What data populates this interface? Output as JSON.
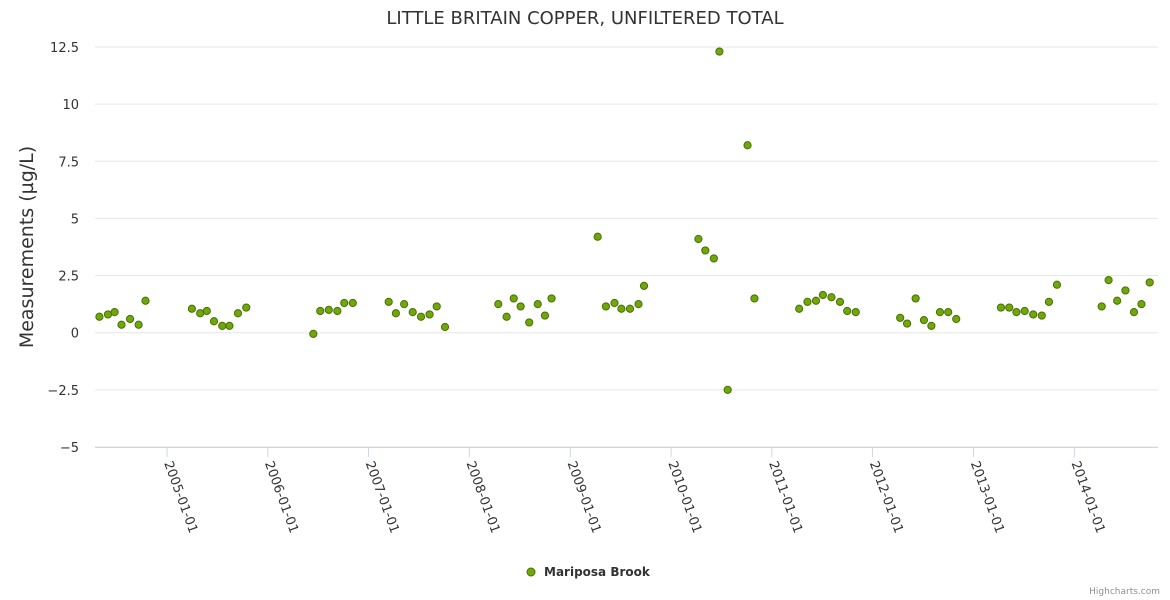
{
  "chart_data": {
    "type": "scatter",
    "title": "LITTLE BRITAIN COPPER, UNFILTERED TOTAL",
    "ylabel": "Measurements (µg/L)",
    "xlabel": "",
    "ylim": [
      -5,
      12.5
    ],
    "xlim": [
      "2004-04-15",
      "2014-10-31"
    ],
    "yticks": [
      -5,
      -2.5,
      0,
      2.5,
      5,
      7.5,
      10,
      12.5
    ],
    "ytick_labels": [
      "−5",
      "−2.5",
      "0",
      "2.5",
      "5",
      "7.5",
      "10",
      "12.5"
    ],
    "xticks": [
      "2005-01-01",
      "2006-01-01",
      "2007-01-01",
      "2008-01-01",
      "2009-01-01",
      "2010-01-01",
      "2011-01-01",
      "2012-01-01",
      "2013-01-01",
      "2014-01-01"
    ],
    "grid": "horizontal",
    "legend_position": "bottom-center",
    "series": [
      {
        "name": "Mariposa Brook",
        "color": "#6fa80c",
        "points": [
          {
            "x": "2004-05-01",
            "y": 0.7
          },
          {
            "x": "2004-06-01",
            "y": 0.8
          },
          {
            "x": "2004-06-25",
            "y": 0.9
          },
          {
            "x": "2004-07-20",
            "y": 0.35
          },
          {
            "x": "2004-08-20",
            "y": 0.6
          },
          {
            "x": "2004-09-20",
            "y": 0.35
          },
          {
            "x": "2004-10-15",
            "y": 1.4
          },
          {
            "x": "2005-04-01",
            "y": 1.05
          },
          {
            "x": "2005-05-01",
            "y": 0.85
          },
          {
            "x": "2005-05-25",
            "y": 0.95
          },
          {
            "x": "2005-06-20",
            "y": 0.5
          },
          {
            "x": "2005-07-20",
            "y": 0.3
          },
          {
            "x": "2005-08-15",
            "y": 0.3
          },
          {
            "x": "2005-09-15",
            "y": 0.85
          },
          {
            "x": "2005-10-15",
            "y": 1.1
          },
          {
            "x": "2006-06-15",
            "y": -0.05
          },
          {
            "x": "2006-07-10",
            "y": 0.95
          },
          {
            "x": "2006-08-10",
            "y": 1.0
          },
          {
            "x": "2006-09-10",
            "y": 0.95
          },
          {
            "x": "2006-10-05",
            "y": 1.3
          },
          {
            "x": "2006-11-05",
            "y": 1.3
          },
          {
            "x": "2007-03-15",
            "y": 1.35
          },
          {
            "x": "2007-04-10",
            "y": 0.85
          },
          {
            "x": "2007-05-10",
            "y": 1.25
          },
          {
            "x": "2007-06-10",
            "y": 0.9
          },
          {
            "x": "2007-07-10",
            "y": 0.7
          },
          {
            "x": "2007-08-10",
            "y": 0.8
          },
          {
            "x": "2007-09-05",
            "y": 1.15
          },
          {
            "x": "2007-10-05",
            "y": 0.25
          },
          {
            "x": "2008-04-15",
            "y": 1.25
          },
          {
            "x": "2008-05-15",
            "y": 0.7
          },
          {
            "x": "2008-06-10",
            "y": 1.5
          },
          {
            "x": "2008-07-05",
            "y": 1.15
          },
          {
            "x": "2008-08-05",
            "y": 0.45
          },
          {
            "x": "2008-09-05",
            "y": 1.25
          },
          {
            "x": "2008-10-01",
            "y": 0.75
          },
          {
            "x": "2008-10-25",
            "y": 1.5
          },
          {
            "x": "2009-04-10",
            "y": 4.2
          },
          {
            "x": "2009-05-10",
            "y": 1.15
          },
          {
            "x": "2009-06-10",
            "y": 1.3
          },
          {
            "x": "2009-07-05",
            "y": 1.05
          },
          {
            "x": "2009-08-05",
            "y": 1.05
          },
          {
            "x": "2009-09-05",
            "y": 1.25
          },
          {
            "x": "2009-09-25",
            "y": 2.05
          },
          {
            "x": "2010-04-10",
            "y": 4.1
          },
          {
            "x": "2010-05-05",
            "y": 3.6
          },
          {
            "x": "2010-06-05",
            "y": 3.25
          },
          {
            "x": "2010-06-25",
            "y": 12.3
          },
          {
            "x": "2010-07-25",
            "y": -2.5
          },
          {
            "x": "2010-10-05",
            "y": 8.2
          },
          {
            "x": "2010-10-30",
            "y": 1.5
          },
          {
            "x": "2011-04-10",
            "y": 1.05
          },
          {
            "x": "2011-05-10",
            "y": 1.35
          },
          {
            "x": "2011-06-10",
            "y": 1.4
          },
          {
            "x": "2011-07-05",
            "y": 1.65
          },
          {
            "x": "2011-08-05",
            "y": 1.55
          },
          {
            "x": "2011-09-05",
            "y": 1.35
          },
          {
            "x": "2011-10-01",
            "y": 0.95
          },
          {
            "x": "2011-11-01",
            "y": 0.9
          },
          {
            "x": "2012-04-10",
            "y": 0.65
          },
          {
            "x": "2012-05-05",
            "y": 0.4
          },
          {
            "x": "2012-06-05",
            "y": 1.5
          },
          {
            "x": "2012-07-05",
            "y": 0.55
          },
          {
            "x": "2012-08-01",
            "y": 0.3
          },
          {
            "x": "2012-09-01",
            "y": 0.9
          },
          {
            "x": "2012-10-01",
            "y": 0.9
          },
          {
            "x": "2012-10-30",
            "y": 0.6
          },
          {
            "x": "2013-04-10",
            "y": 1.1
          },
          {
            "x": "2013-05-10",
            "y": 1.1
          },
          {
            "x": "2013-06-05",
            "y": 0.9
          },
          {
            "x": "2013-07-05",
            "y": 0.95
          },
          {
            "x": "2013-08-05",
            "y": 0.8
          },
          {
            "x": "2013-09-05",
            "y": 0.75
          },
          {
            "x": "2013-10-01",
            "y": 1.35
          },
          {
            "x": "2013-10-30",
            "y": 2.1
          },
          {
            "x": "2014-04-10",
            "y": 1.15
          },
          {
            "x": "2014-05-05",
            "y": 2.3
          },
          {
            "x": "2014-06-05",
            "y": 1.4
          },
          {
            "x": "2014-07-05",
            "y": 1.85
          },
          {
            "x": "2014-08-05",
            "y": 0.9
          },
          {
            "x": "2014-09-01",
            "y": 1.25
          },
          {
            "x": "2014-10-01",
            "y": 2.2
          }
        ]
      }
    ]
  },
  "credits": "Highcharts.com"
}
